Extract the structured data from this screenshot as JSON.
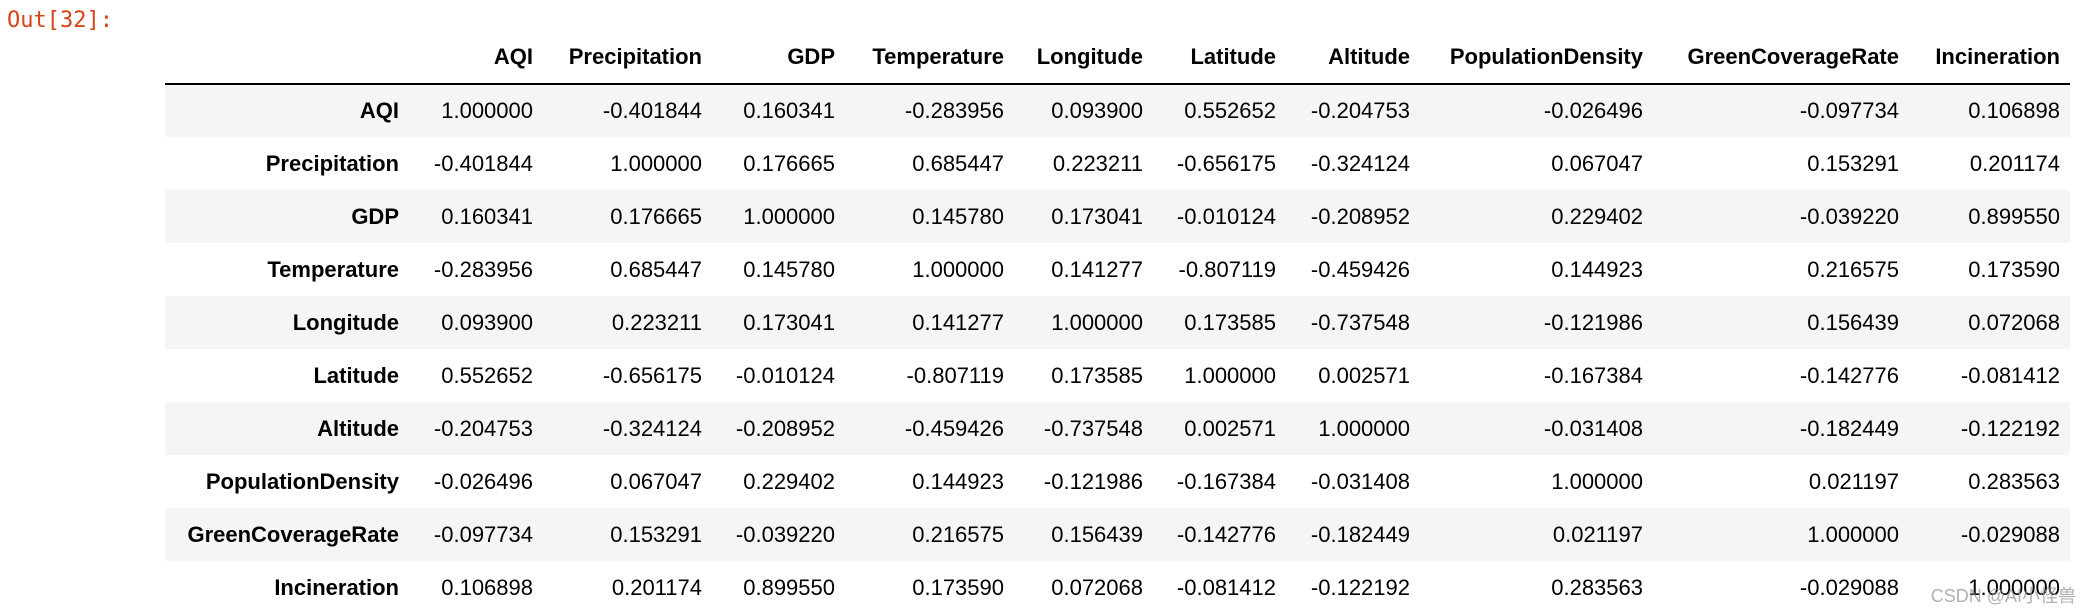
{
  "output_prompt": "Out[32]:",
  "table": {
    "columns": [
      "AQI",
      "Precipitation",
      "GDP",
      "Temperature",
      "Longitude",
      "Latitude",
      "Altitude",
      "PopulationDensity",
      "GreenCoverageRate",
      "Incineration"
    ],
    "rows": [
      {
        "label": "AQI",
        "values": [
          "1.000000",
          "-0.401844",
          "0.160341",
          "-0.283956",
          "0.093900",
          "0.552652",
          "-0.204753",
          "-0.026496",
          "-0.097734",
          "0.106898"
        ]
      },
      {
        "label": "Precipitation",
        "values": [
          "-0.401844",
          "1.000000",
          "0.176665",
          "0.685447",
          "0.223211",
          "-0.656175",
          "-0.324124",
          "0.067047",
          "0.153291",
          "0.201174"
        ]
      },
      {
        "label": "GDP",
        "values": [
          "0.160341",
          "0.176665",
          "1.000000",
          "0.145780",
          "0.173041",
          "-0.010124",
          "-0.208952",
          "0.229402",
          "-0.039220",
          "0.899550"
        ]
      },
      {
        "label": "Temperature",
        "values": [
          "-0.283956",
          "0.685447",
          "0.145780",
          "1.000000",
          "0.141277",
          "-0.807119",
          "-0.459426",
          "0.144923",
          "0.216575",
          "0.173590"
        ]
      },
      {
        "label": "Longitude",
        "values": [
          "0.093900",
          "0.223211",
          "0.173041",
          "0.141277",
          "1.000000",
          "0.173585",
          "-0.737548",
          "-0.121986",
          "0.156439",
          "0.072068"
        ]
      },
      {
        "label": "Latitude",
        "values": [
          "0.552652",
          "-0.656175",
          "-0.010124",
          "-0.807119",
          "0.173585",
          "1.000000",
          "0.002571",
          "-0.167384",
          "-0.142776",
          "-0.081412"
        ]
      },
      {
        "label": "Altitude",
        "values": [
          "-0.204753",
          "-0.324124",
          "-0.208952",
          "-0.459426",
          "-0.737548",
          "0.002571",
          "1.000000",
          "-0.031408",
          "-0.182449",
          "-0.122192"
        ]
      },
      {
        "label": "PopulationDensity",
        "values": [
          "-0.026496",
          "0.067047",
          "0.229402",
          "0.144923",
          "-0.121986",
          "-0.167384",
          "-0.031408",
          "1.000000",
          "0.021197",
          "0.283563"
        ]
      },
      {
        "label": "GreenCoverageRate",
        "values": [
          "-0.097734",
          "0.153291",
          "-0.039220",
          "0.216575",
          "0.156439",
          "-0.142776",
          "-0.182449",
          "0.021197",
          "1.000000",
          "-0.029088"
        ]
      },
      {
        "label": "Incineration",
        "values": [
          "0.106898",
          "0.201174",
          "0.899550",
          "0.173590",
          "0.072068",
          "-0.081412",
          "-0.122192",
          "0.283563",
          "-0.029088",
          "1.000000"
        ]
      }
    ]
  },
  "watermark": "CSDN @AI小怪兽"
}
